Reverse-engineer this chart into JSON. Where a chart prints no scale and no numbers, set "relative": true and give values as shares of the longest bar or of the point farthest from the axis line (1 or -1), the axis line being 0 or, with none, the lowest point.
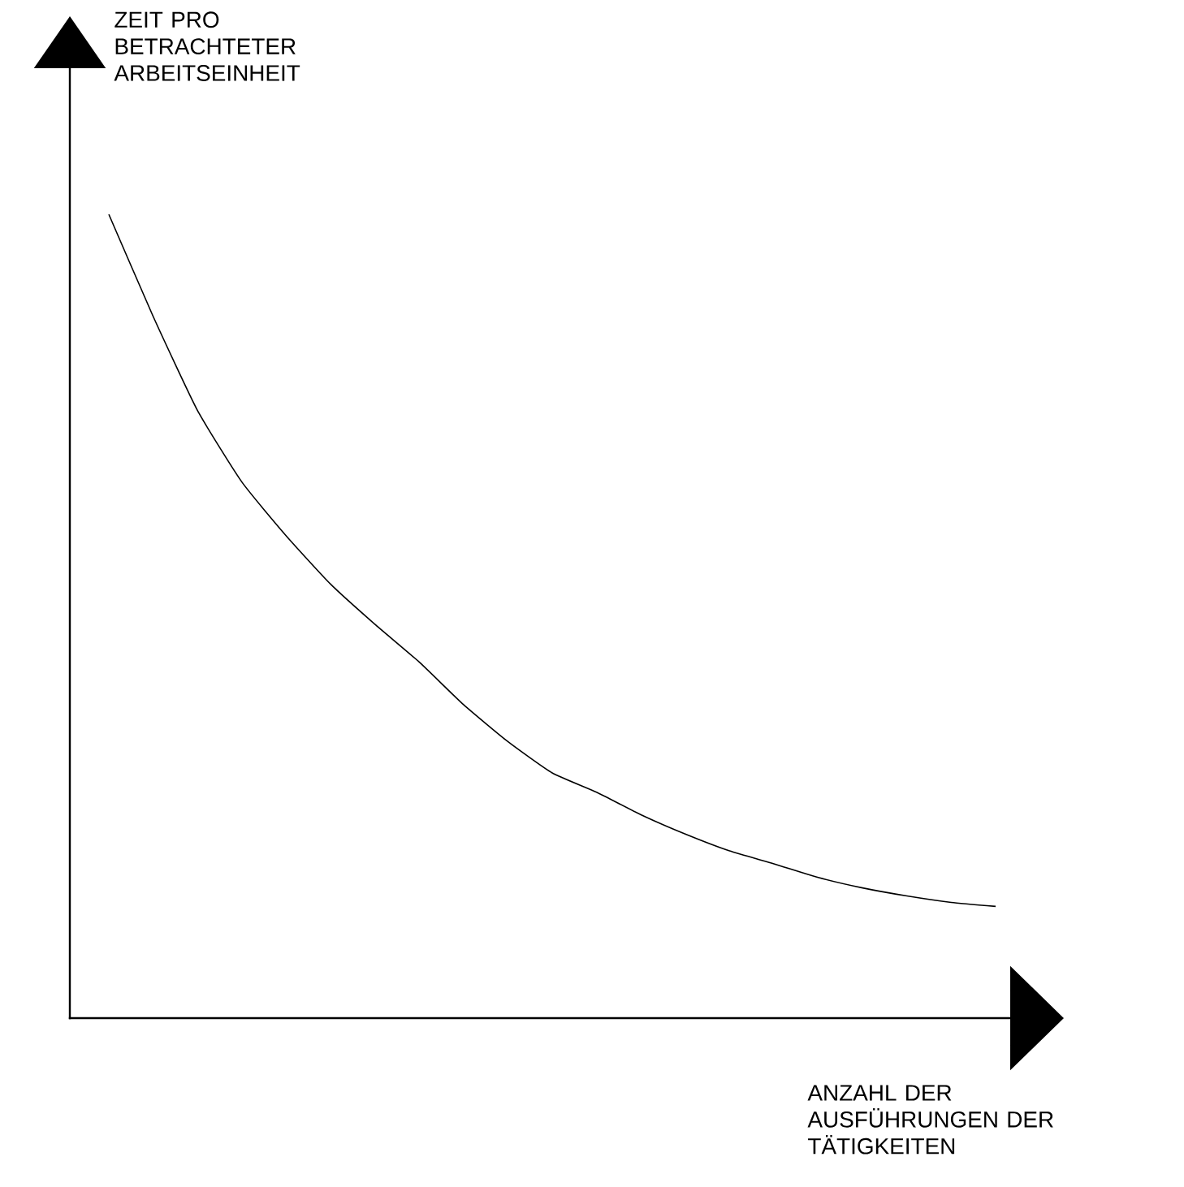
{
  "chart_data": {
    "type": "line",
    "relative": true,
    "xlabel": "ANZAHL DER AUSFÜHRUNGEN DER TÄTIGKEITEN",
    "annotations": [
      "ZEIT PRO BETRACHTETER ARBEITSEINHEIT"
    ],
    "categories": [
      null,
      null,
      null,
      null,
      null,
      null,
      null,
      null,
      null,
      null,
      null,
      null,
      null,
      null,
      null,
      null,
      null,
      null,
      null,
      null,
      null
    ],
    "series": [
      {
        "color": "#000000",
        "values": [
          1.0,
          0.873,
          0.756,
          0.667,
          0.6,
          0.54,
          0.49,
          0.443,
          0.39,
          0.344,
          0.305,
          0.281,
          0.253,
          0.229,
          0.208,
          0.192,
          0.175,
          0.162,
          0.152,
          0.144,
          0.139
        ]
      }
    ]
  }
}
